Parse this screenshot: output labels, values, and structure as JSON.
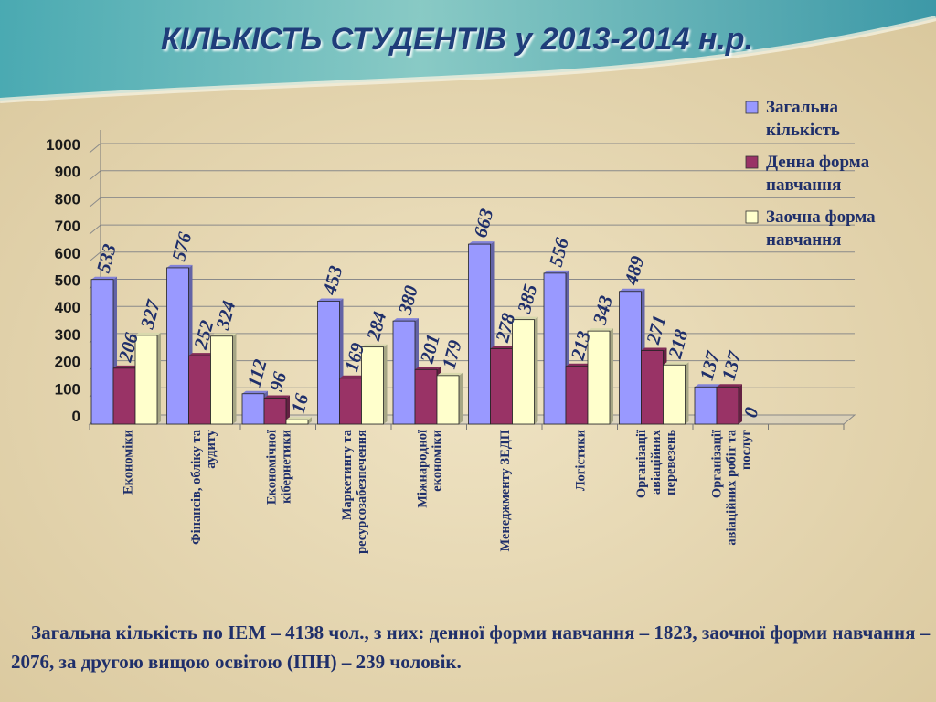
{
  "title": "КІЛЬКІСТЬ СТУДЕНТІВ у 2013-2014 н.р.",
  "footer": "Загальна кількість по ІЕМ – 4138 чол., з них: денної форми навчання – 1823, заочної форми навчання – 2076, за другою вищою освітою (ІПН) – 239 чоловік.",
  "chart_data": {
    "type": "bar",
    "title": "",
    "xlabel": "",
    "ylabel": "",
    "ylim": [
      0,
      1000
    ],
    "yticks": [
      0,
      100,
      200,
      300,
      400,
      500,
      600,
      700,
      800,
      900,
      1000
    ],
    "grid": true,
    "legend_position": "top-right",
    "categories": [
      "Економіки",
      "Фінансів, обліку та аудиту",
      "Економічної кібернетики",
      "Маркетингу та ресурсозабезпечення",
      "Міжнародної економіки",
      "Менеджменту ЗЕДП",
      "Логістики",
      "Організації авіаційних перевезень",
      "Організації авіаційних робіт та послуг"
    ],
    "category_lines": [
      [
        "Економіки"
      ],
      [
        "Фінансів, обліку та",
        "аудиту"
      ],
      [
        "Економічної",
        "кібернетики"
      ],
      [
        "Маркетингу та",
        "ресурсозабезпечення"
      ],
      [
        "Міжнародної",
        "економіки"
      ],
      [
        "Менеджменту ЗЕДП"
      ],
      [
        "Логістики"
      ],
      [
        "Організації",
        "авіаційних",
        "перевезень"
      ],
      [
        "Організації",
        "авіаційних робіт та",
        "послуг"
      ]
    ],
    "series": [
      {
        "name": "Загальна кількість",
        "name_lines": [
          "Загальна",
          "кількість"
        ],
        "color": "#9999ff",
        "values": [
          533,
          576,
          112,
          453,
          380,
          663,
          556,
          489,
          137
        ]
      },
      {
        "name": "Денна форма навчання",
        "name_lines": [
          "Денна форма",
          "навчання"
        ],
        "color": "#993366",
        "values": [
          206,
          252,
          96,
          169,
          201,
          278,
          213,
          271,
          137
        ]
      },
      {
        "name": "Заочна форма навчання",
        "name_lines": [
          "Заочна форма",
          "навчання"
        ],
        "color": "#ffffcc",
        "values": [
          327,
          324,
          16,
          284,
          179,
          385,
          343,
          218,
          0
        ]
      }
    ]
  }
}
